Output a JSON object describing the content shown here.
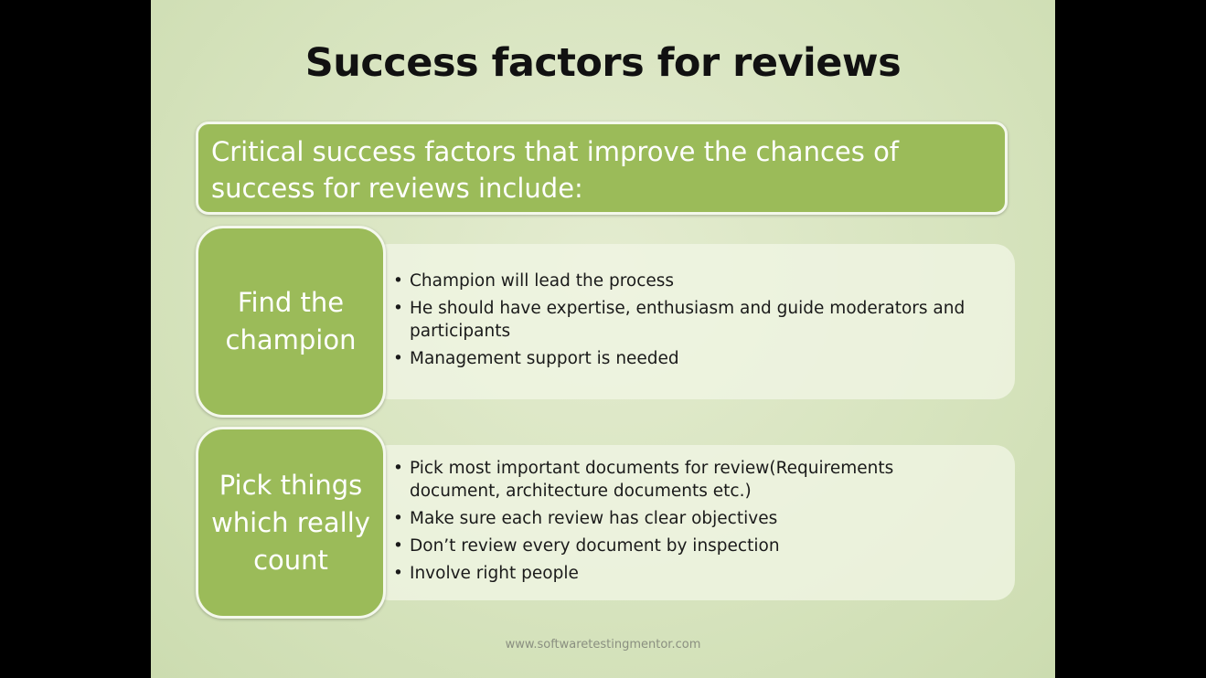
{
  "slide": {
    "title": "Success factors for reviews",
    "intro": "Critical success factors that improve the chances of success for reviews include:",
    "sections": [
      {
        "label": "Find the champion",
        "bullets": [
          "Champion will lead the process",
          "He should have expertise, enthusiasm and guide moderators and participants",
          "Management support is needed"
        ]
      },
      {
        "label": "Pick things which really count",
        "bullets": [
          "Pick most important documents for review(Requirements document, architecture documents etc.)",
          "Make sure each review has clear objectives",
          "Don’t review every document by inspection",
          "Involve right people"
        ]
      }
    ],
    "footer": "www.softwaretestingmentor.com"
  },
  "colors": {
    "background": "#d6e3bd",
    "accent_green": "#9bbb59",
    "letterbox": "#000000"
  }
}
